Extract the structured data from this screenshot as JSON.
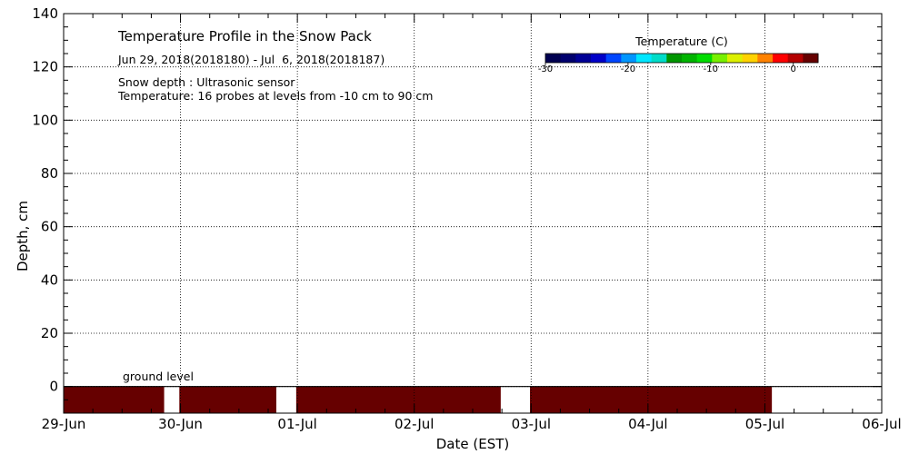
{
  "chart_data": {
    "type": "heatmap",
    "title": "Temperature Profile in the Snow Pack",
    "subtitle": "Jun 29, 2018(2018180) - Jul  6, 2018(2018187)",
    "notes": [
      "Snow depth : Ultrasonic sensor",
      "Temperature: 16 probes at levels from -10 cm to 90 cm"
    ],
    "xlabel": "Date (EST)",
    "ylabel": "Depth, cm",
    "x_ticks": [
      "29-Jun",
      "30-Jun",
      "01-Jul",
      "02-Jul",
      "03-Jul",
      "04-Jul",
      "05-Jul",
      "06-Jul"
    ],
    "x_range_days": [
      0,
      7
    ],
    "ylim": [
      -10,
      140
    ],
    "y_ticks": [
      0,
      20,
      40,
      60,
      80,
      100,
      120,
      140
    ],
    "grid": true,
    "ground_label": "ground level",
    "ground_depth": 0,
    "soil_band": {
      "from_depth": -10,
      "to_depth": 0,
      "color": "#660000"
    },
    "segments_days": [
      [
        0.0,
        0.86
      ],
      [
        0.99,
        1.82
      ],
      [
        1.99,
        3.74
      ],
      [
        3.99,
        6.06
      ]
    ],
    "colorbar": {
      "title": "Temperature (C)",
      "range": [
        -30,
        3
      ],
      "tick_values": [
        -30,
        -20,
        -10,
        0
      ],
      "tick_labels": [
        "-30",
        "-20",
        "-10",
        "0"
      ],
      "colors": [
        "#000050",
        "#00006e",
        "#000096",
        "#0000c8",
        "#0046ff",
        "#0096ff",
        "#00e6ff",
        "#00dcc8",
        "#009600",
        "#00b400",
        "#00dc00",
        "#78f000",
        "#dcf000",
        "#ffd200",
        "#ff8200",
        "#ff0000",
        "#b40000",
        "#660000"
      ]
    }
  }
}
